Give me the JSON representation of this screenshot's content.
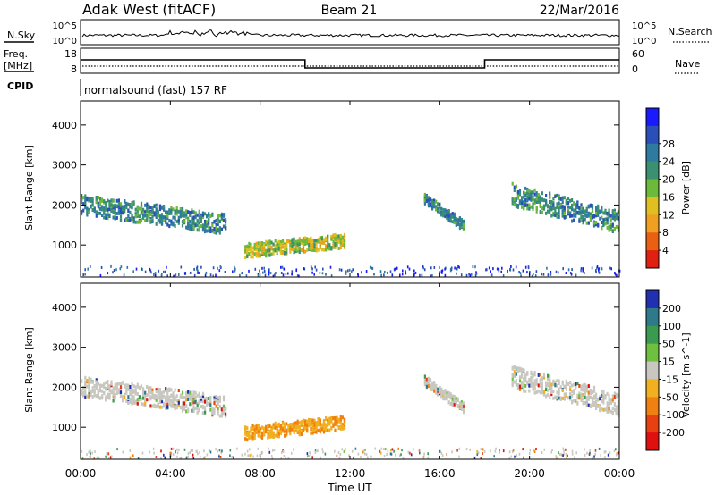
{
  "header": {
    "station": "Adak West (fitACF)",
    "beam": "Beam 21",
    "date": "22/Mar/2016"
  },
  "status_panels": {
    "nsky": {
      "label": "N.Sky",
      "yticks": [
        "10^5",
        "10^0"
      ]
    },
    "nsearch": {
      "label": "N.Search",
      "yticks": [
        "10^5",
        "10^0"
      ]
    },
    "freq": {
      "label_lines": [
        "Freq.",
        "[MHz]"
      ],
      "yticks": [
        "18",
        "8"
      ],
      "step_hours": [
        0,
        10,
        18,
        24
      ],
      "step_levels": [
        "high",
        "low",
        "high"
      ]
    },
    "nave": {
      "label": "Nave",
      "yticks": [
        "60",
        "0"
      ]
    },
    "cpid": {
      "label": "CPID",
      "text": "normalsound (fast) 157 RF"
    }
  },
  "chart_data": [
    {
      "type": "heatmap",
      "name": "power",
      "ylabel": "Slant Range [km]",
      "xlabel": "",
      "xlim": [
        0,
        24
      ],
      "ylim": [
        200,
        4600
      ],
      "yticks": [
        "1000",
        "2000",
        "3000",
        "4000"
      ],
      "colorbar": {
        "label": "Power [dB]",
        "ticks": [
          "4",
          "8",
          "12",
          "16",
          "20",
          "24",
          "28"
        ],
        "colors": [
          "#1a1aff",
          "#2a4fb8",
          "#2e7aa0",
          "#3a9070",
          "#6dba3a",
          "#e0c020",
          "#f0a020",
          "#e86010",
          "#e02010"
        ]
      },
      "echo_bands": [
        {
          "hours": [
            0,
            6.5
          ],
          "center_km": [
            2050,
            1550
          ],
          "width_km": 500
        },
        {
          "hours": [
            7.3,
            11.8
          ],
          "center_km": [
            900,
            1150
          ],
          "width_km": 350
        },
        {
          "hours": [
            15.3,
            17.1
          ],
          "center_km": [
            2200,
            1500
          ],
          "width_km": 250
        },
        {
          "hours": [
            19.2,
            24
          ],
          "center_km": [
            2300,
            1600
          ],
          "width_km": 550
        }
      ]
    },
    {
      "type": "heatmap",
      "name": "velocity",
      "ylabel": "Slant Range [km]",
      "xlabel": "Time UT",
      "xlim": [
        0,
        24
      ],
      "ylim": [
        200,
        4600
      ],
      "xticks": [
        "00:00",
        "04:00",
        "08:00",
        "12:00",
        "16:00",
        "20:00",
        "00:00"
      ],
      "yticks": [
        "1000",
        "2000",
        "3000",
        "4000"
      ],
      "colorbar": {
        "label": "Velocity [m s^-1]",
        "ticks": [
          "200",
          "100",
          "50",
          "15",
          "-15",
          "-50",
          "-100",
          "-200"
        ],
        "colors": [
          "#2030b0",
          "#2e7a8a",
          "#3a9a50",
          "#70c040",
          "#c8c8c0",
          "#f0b020",
          "#f08010",
          "#e84010",
          "#e01010"
        ]
      },
      "echo_bands": [
        {
          "hours": [
            0,
            6.5
          ],
          "center_km": [
            2050,
            1550
          ],
          "width_km": 500
        },
        {
          "hours": [
            7.3,
            11.8
          ],
          "center_km": [
            900,
            1150
          ],
          "width_km": 350
        },
        {
          "hours": [
            15.3,
            17.1
          ],
          "center_km": [
            2200,
            1500
          ],
          "width_km": 250
        },
        {
          "hours": [
            19.2,
            24
          ],
          "center_km": [
            2300,
            1600
          ],
          "width_km": 550
        }
      ]
    }
  ]
}
